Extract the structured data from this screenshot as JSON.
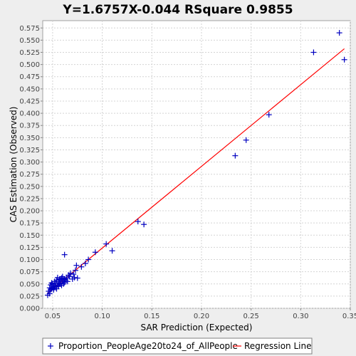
{
  "chart_data": {
    "type": "scatter",
    "title": "Y=1.6757X-0.044    RSquare 0.9855",
    "xlabel": "SAR Prediction (Expected)",
    "ylabel": "CAS Estimation (Observed)",
    "xlim": [
      0.04,
      0.35
    ],
    "ylim": [
      0.0,
      0.59
    ],
    "xticks": [
      "0.05",
      "0.10",
      "0.15",
      "0.20",
      "0.25",
      "0.30",
      "0.35"
    ],
    "yticks": [
      "0.000",
      "0.025",
      "0.050",
      "0.075",
      "0.100",
      "0.125",
      "0.150",
      "0.175",
      "0.200",
      "0.225",
      "0.250",
      "0.275",
      "0.300",
      "0.325",
      "0.350",
      "0.375",
      "0.400",
      "0.425",
      "0.450",
      "0.475",
      "0.500",
      "0.525",
      "0.550",
      "0.575"
    ],
    "grid": true,
    "legend_position": "bottom",
    "series": [
      {
        "name": "Proportion_PeopleAge20to24_of_AllPeople",
        "kind": "points",
        "color": "#0000c0",
        "x": [
          0.045,
          0.046,
          0.047,
          0.047,
          0.048,
          0.048,
          0.049,
          0.049,
          0.05,
          0.05,
          0.051,
          0.051,
          0.052,
          0.052,
          0.053,
          0.053,
          0.054,
          0.054,
          0.055,
          0.055,
          0.056,
          0.056,
          0.057,
          0.057,
          0.058,
          0.058,
          0.059,
          0.059,
          0.06,
          0.06,
          0.061,
          0.061,
          0.062,
          0.062,
          0.063,
          0.064,
          0.065,
          0.066,
          0.067,
          0.068,
          0.07,
          0.071,
          0.072,
          0.073,
          0.074,
          0.075,
          0.079,
          0.083,
          0.086,
          0.093,
          0.104,
          0.11,
          0.136,
          0.142,
          0.062,
          0.234,
          0.245,
          0.268,
          0.313,
          0.339,
          0.344
        ],
        "y": [
          0.027,
          0.035,
          0.03,
          0.042,
          0.038,
          0.048,
          0.04,
          0.052,
          0.042,
          0.05,
          0.038,
          0.045,
          0.044,
          0.055,
          0.046,
          0.051,
          0.04,
          0.058,
          0.048,
          0.063,
          0.045,
          0.055,
          0.05,
          0.06,
          0.052,
          0.058,
          0.047,
          0.062,
          0.055,
          0.065,
          0.05,
          0.058,
          0.053,
          0.06,
          0.058,
          0.062,
          0.055,
          0.068,
          0.065,
          0.072,
          0.06,
          0.07,
          0.063,
          0.078,
          0.088,
          0.062,
          0.085,
          0.092,
          0.1,
          0.115,
          0.132,
          0.118,
          0.178,
          0.172,
          0.11,
          0.313,
          0.345,
          0.397,
          0.525,
          0.565,
          0.51
        ]
      },
      {
        "name": "Regression Line",
        "kind": "line",
        "color": "#ff0000",
        "x": [
          0.045,
          0.344
        ],
        "y": [
          0.0314,
          0.5324
        ]
      }
    ]
  }
}
